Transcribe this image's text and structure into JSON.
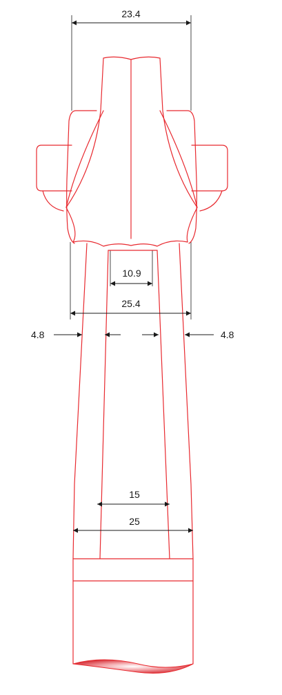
{
  "colors": {
    "outline": "#e8282e",
    "dimension_ink": "#1a1a1a",
    "background": "#ffffff",
    "shading": "#d01a22"
  },
  "dimensions": {
    "top_width": "23.4",
    "inner_top_width": "10.9",
    "upper_width": "25.4",
    "left_wall": "4.8",
    "right_wall": "4.8",
    "inner_lower_width": "15",
    "lower_width": "25"
  }
}
